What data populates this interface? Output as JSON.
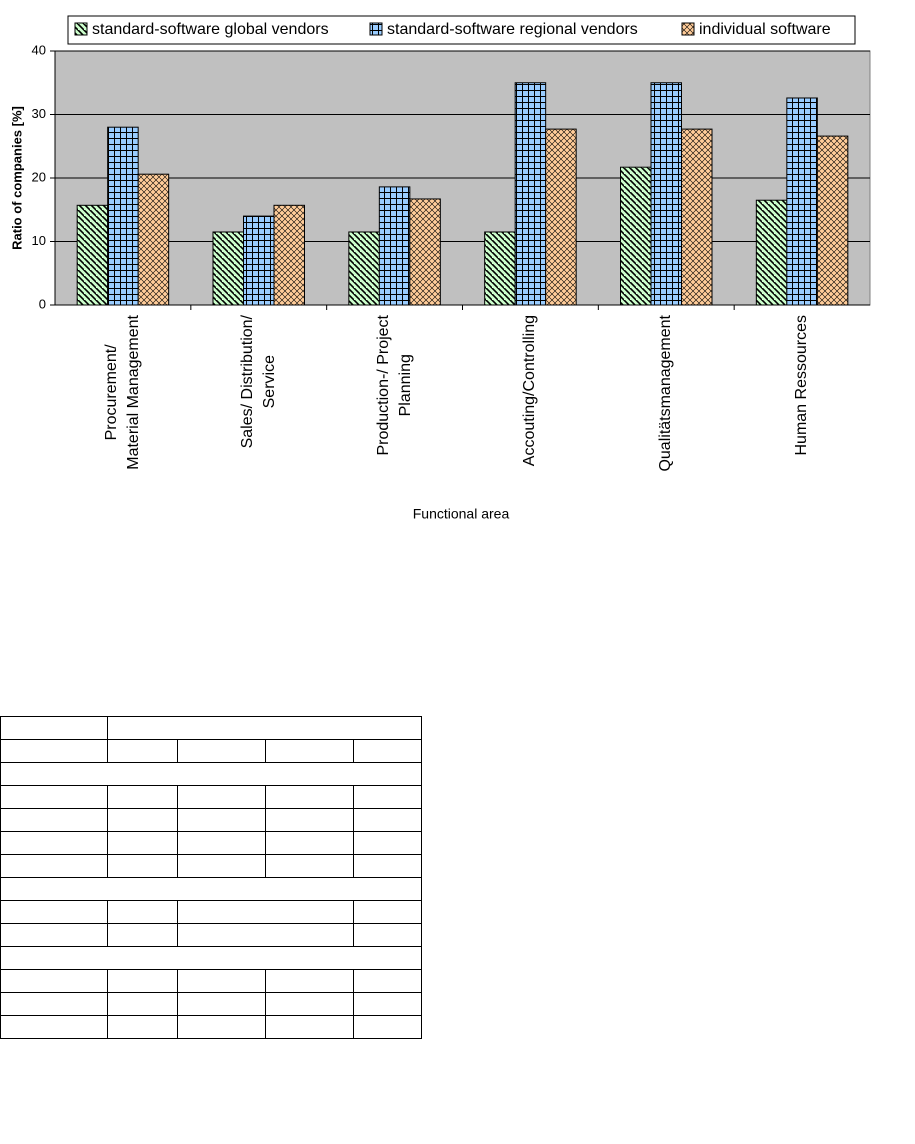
{
  "chart_data": {
    "type": "bar",
    "y_label": "Ratio of companies [%]",
    "x_label": "Functional area",
    "categories": [
      "Procurement/\nMaterial Management",
      "Sales/ Distribution/\nService",
      "Production-/ Project\nPlanning",
      "Accouting/Controlling",
      "Qualitätsmanagement",
      "Human Ressources"
    ],
    "series": [
      {
        "name": "standard-software global vendors",
        "color": "#ccffcc",
        "values": [
          15.7,
          11.5,
          11.5,
          11.5,
          21.7,
          16.5
        ]
      },
      {
        "name": "standard-software regional vendors",
        "color": "#99ccff",
        "values": [
          28.0,
          14.0,
          18.6,
          35.0,
          35.0,
          32.6
        ]
      },
      {
        "name": "individual software",
        "color": "#ffcc99",
        "values": [
          20.6,
          15.7,
          16.7,
          27.7,
          27.7,
          26.6
        ]
      }
    ],
    "ylim": [
      0,
      40
    ],
    "yticks": [
      0,
      10,
      20,
      30,
      40
    ],
    "grid": true,
    "legend": "top"
  }
}
